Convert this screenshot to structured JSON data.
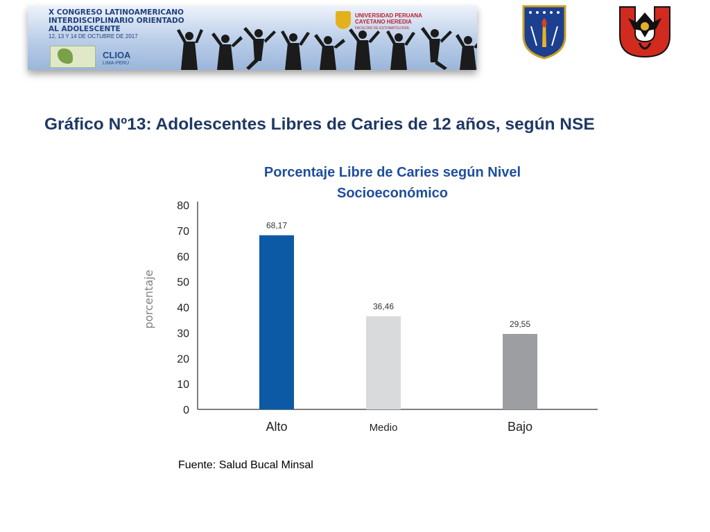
{
  "banner": {
    "title": "X CONGRESO LATINOAMERICANO\nINTERDISCIPLINARIO ORIENTADO\nAL ADOLESCENTE",
    "dates": "12, 13 Y 14 DE OCTUBRE DE 2017",
    "organizer": "CLIOA",
    "organizer_location": "LIMA-PERÚ",
    "university": "UNIVERSIDAD PERUANA\nCAYETANO HEREDIA",
    "faculty": "FACULTAD DE ESTOMATOLOGÍA"
  },
  "slide": {
    "title": "Gráfico Nº13: Adolescentes Libres de Caries de 12 años, según NSE",
    "source": "Fuente: Salud Bucal Minsal"
  },
  "colors": {
    "title": "#1f3864",
    "chart_title": "#1f4e9c",
    "bar_alto": "#0c5aa6",
    "bar_medio": "#d9dadc",
    "bar_bajo": "#9d9ea2"
  },
  "chart_data": {
    "type": "bar",
    "title": "Porcentaje Libre de Caries según Nivel\nSocioeconómico",
    "xlabel": "",
    "ylabel": "porcentaje",
    "categories": [
      "Alto",
      "Medio",
      "Bajo"
    ],
    "values": [
      68.17,
      36.46,
      29.55
    ],
    "value_labels": [
      "68,17",
      "36,46",
      "29,55"
    ],
    "yticks": [
      "0",
      "10",
      "20",
      "30",
      "40",
      "50",
      "60",
      "70",
      "80"
    ],
    "ylim": [
      0,
      80
    ],
    "grid": false,
    "legend": "none"
  }
}
